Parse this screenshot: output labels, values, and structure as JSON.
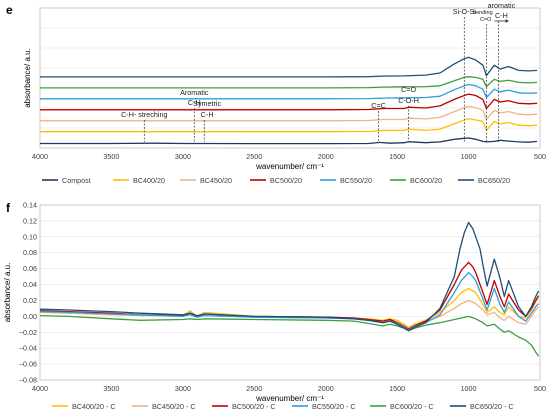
{
  "chart_data": [
    {
      "panel_label": "e",
      "type": "line",
      "xlabel": "wavenumber/ cm⁻¹",
      "ylabel": "absorbance/ a.u.",
      "xlim": [
        4000,
        500
      ],
      "x_reversed": true,
      "x_ticks": [
        4000,
        3500,
        3000,
        2500,
        2000,
        1500,
        1000,
        500
      ],
      "y_ticks_labeled": false,
      "grid": "horizontal",
      "legend_position": "bottom",
      "series": [
        {
          "name": "Compost",
          "color": "#1f3864",
          "offset": 0.0,
          "x": [
            4000,
            3500,
            3200,
            3000,
            2900,
            2500,
            2000,
            1700,
            1620,
            1550,
            1450,
            1420,
            1300,
            1200,
            1100,
            1030,
            1000,
            950,
            900,
            875,
            820,
            780,
            720,
            650,
            580,
            520
          ],
          "y": [
            0.02,
            0.02,
            0.03,
            0.02,
            0.02,
            0.015,
            0.015,
            0.02,
            0.06,
            0.03,
            0.05,
            0.09,
            0.05,
            0.08,
            0.18,
            0.22,
            0.23,
            0.18,
            0.1,
            0.08,
            0.1,
            0.14,
            0.11,
            0.08,
            0.07,
            0.1
          ]
        },
        {
          "name": "BC400/20",
          "color": "#ffc000",
          "offset": 0.6,
          "x": [
            4000,
            3500,
            3000,
            2500,
            2000,
            1700,
            1600,
            1450,
            1420,
            1300,
            1200,
            1100,
            1030,
            1000,
            950,
            900,
            875,
            820,
            780,
            720,
            650,
            580,
            520
          ],
          "y": [
            0.05,
            0.05,
            0.05,
            0.05,
            0.05,
            0.06,
            0.1,
            0.1,
            0.15,
            0.1,
            0.15,
            0.35,
            0.5,
            0.55,
            0.5,
            0.45,
            0.1,
            0.45,
            0.35,
            0.4,
            0.3,
            0.28,
            0.3
          ]
        },
        {
          "name": "BC450/20",
          "color": "#f4b183",
          "offset": 1.2,
          "x": [
            4000,
            3500,
            3000,
            2500,
            2000,
            1700,
            1600,
            1450,
            1420,
            1300,
            1200,
            1100,
            1030,
            1000,
            950,
            900,
            875,
            820,
            780,
            720,
            650,
            580,
            520
          ],
          "y": [
            0.05,
            0.05,
            0.05,
            0.05,
            0.05,
            0.06,
            0.1,
            0.1,
            0.15,
            0.12,
            0.18,
            0.4,
            0.55,
            0.6,
            0.55,
            0.45,
            0.1,
            0.45,
            0.35,
            0.4,
            0.3,
            0.28,
            0.3
          ]
        },
        {
          "name": "BC500/20",
          "color": "#c00000",
          "offset": 1.8,
          "x": [
            4000,
            3500,
            3000,
            2500,
            2000,
            1700,
            1600,
            1450,
            1420,
            1300,
            1200,
            1100,
            1030,
            1000,
            950,
            900,
            875,
            820,
            780,
            720,
            650,
            580,
            520
          ],
          "y": [
            0.05,
            0.05,
            0.05,
            0.05,
            0.05,
            0.06,
            0.1,
            0.1,
            0.15,
            0.12,
            0.2,
            0.45,
            0.6,
            0.65,
            0.6,
            0.45,
            0.1,
            0.45,
            0.35,
            0.4,
            0.3,
            0.28,
            0.3
          ]
        },
        {
          "name": "BC550/20",
          "color": "#2e9fd8",
          "offset": 2.4,
          "x": [
            4000,
            3500,
            3000,
            2500,
            2000,
            1700,
            1600,
            1450,
            1300,
            1200,
            1100,
            1030,
            1000,
            950,
            900,
            875,
            820,
            780,
            720,
            650,
            580,
            520
          ],
          "y": [
            0.05,
            0.05,
            0.05,
            0.05,
            0.05,
            0.06,
            0.08,
            0.09,
            0.1,
            0.15,
            0.4,
            0.55,
            0.6,
            0.55,
            0.42,
            0.1,
            0.42,
            0.32,
            0.38,
            0.28,
            0.26,
            0.28
          ]
        },
        {
          "name": "BC600/20",
          "color": "#3ca03c",
          "offset": 3.0,
          "x": [
            4000,
            3500,
            3000,
            2500,
            2000,
            1700,
            1600,
            1450,
            1300,
            1200,
            1100,
            1030,
            1000,
            950,
            900,
            875,
            820,
            780,
            720,
            650,
            580,
            520
          ],
          "y": [
            0.05,
            0.05,
            0.05,
            0.05,
            0.05,
            0.06,
            0.08,
            0.09,
            0.1,
            0.13,
            0.32,
            0.45,
            0.48,
            0.45,
            0.38,
            0.1,
            0.38,
            0.3,
            0.34,
            0.26,
            0.24,
            0.26
          ]
        },
        {
          "name": "BC650/20",
          "color": "#1f4e79",
          "offset": 3.6,
          "x": [
            4000,
            3500,
            3000,
            2500,
            2000,
            1700,
            1600,
            1450,
            1300,
            1200,
            1100,
            1030,
            1000,
            950,
            900,
            875,
            820,
            780,
            720,
            650,
            580,
            520
          ],
          "y": [
            0.05,
            0.05,
            0.05,
            0.05,
            0.05,
            0.06,
            0.08,
            0.09,
            0.12,
            0.2,
            0.55,
            0.75,
            0.8,
            0.7,
            0.5,
            0.1,
            0.5,
            0.35,
            0.45,
            0.3,
            0.28,
            0.3
          ]
        }
      ],
      "annotations": [
        {
          "text": "C-H- streching",
          "x": 3270,
          "line_x": 3270
        },
        {
          "text": "Aromatic",
          "x": 2920
        },
        {
          "text": "C-H",
          "x": 2920,
          "line_x": 2920
        },
        {
          "text": "Symetric",
          "x": 2830
        },
        {
          "text": "C-H",
          "x": 2830,
          "line_x": 2850
        },
        {
          "text": "C=C",
          "x": 1630,
          "line_x": 1630
        },
        {
          "text": "C=O",
          "x": 1420
        },
        {
          "text": "C-O-H",
          "x": 1420,
          "line_x": 1420
        },
        {
          "text": "Si-O-Si",
          "x": 1030,
          "line_x": 1030
        },
        {
          "text": "bending",
          "x": 900
        },
        {
          "text": "C=O",
          "x": 880,
          "line_x": 875
        },
        {
          "text": "aromatic",
          "x": 770
        },
        {
          "text": "C-H",
          "x": 770,
          "line_x": 790
        }
      ]
    },
    {
      "panel_label": "f",
      "type": "line",
      "xlabel": "wavenumber/ cm⁻¹",
      "ylabel": "absorbance/ a.u.",
      "xlim": [
        4000,
        500
      ],
      "x_reversed": true,
      "x_ticks": [
        4000,
        3500,
        3000,
        2500,
        2000,
        1500,
        1000,
        500
      ],
      "ylim": [
        -0.08,
        0.14
      ],
      "y_ticks": [
        -0.08,
        -0.06,
        -0.04,
        -0.02,
        0.0,
        0.02,
        0.04,
        0.06,
        0.08,
        0.1,
        0.12,
        0.14
      ],
      "y_tick_labels": [
        "−0.08",
        "−0.06",
        "−0.04",
        "−0.02",
        "0.00",
        "0.02",
        "0.04",
        "0.06",
        "0.08",
        "0.10",
        "0.12",
        "0.14"
      ],
      "grid": "horizontal",
      "legend_position": "bottom",
      "series": [
        {
          "name": "BC400/20 - C",
          "color": "#ffc000",
          "x": [
            4000,
            3800,
            3500,
            3300,
            3000,
            2950,
            2900,
            2850,
            2500,
            2000,
            1800,
            1700,
            1600,
            1550,
            1500,
            1450,
            1420,
            1380,
            1300,
            1200,
            1100,
            1050,
            1000,
            950,
            900,
            870,
            820,
            780,
            750,
            720,
            650,
            600,
            560,
            530,
            510
          ],
          "y": [
            0.006,
            0.005,
            0.003,
            0.002,
            0.001,
            0.007,
            0.0,
            0.005,
            0.0,
            -0.001,
            -0.002,
            -0.003,
            -0.005,
            -0.003,
            -0.005,
            -0.01,
            -0.014,
            -0.01,
            -0.005,
            0.005,
            0.02,
            0.03,
            0.035,
            0.03,
            0.015,
            0.005,
            0.012,
            0.005,
            0.002,
            0.012,
            0.0,
            -0.002,
            0.008,
            0.018,
            0.024
          ]
        },
        {
          "name": "BC450/20 - C",
          "color": "#f4b183",
          "x": [
            4000,
            3800,
            3500,
            3300,
            3000,
            2950,
            2900,
            2850,
            2500,
            2000,
            1800,
            1700,
            1600,
            1550,
            1500,
            1450,
            1420,
            1380,
            1300,
            1200,
            1100,
            1050,
            1000,
            950,
            900,
            870,
            820,
            780,
            750,
            720,
            650,
            600,
            560,
            530,
            510
          ],
          "y": [
            0.005,
            0.004,
            0.002,
            0.001,
            0.0,
            0.006,
            -0.001,
            0.004,
            -0.001,
            -0.002,
            -0.003,
            -0.004,
            -0.006,
            -0.004,
            -0.007,
            -0.012,
            -0.016,
            -0.012,
            -0.007,
            0.0,
            0.01,
            0.016,
            0.02,
            0.016,
            0.008,
            0.002,
            0.005,
            -0.002,
            -0.005,
            0.0,
            -0.008,
            -0.01,
            0.0,
            0.008,
            0.012
          ]
        },
        {
          "name": "BC500/20 - C",
          "color": "#c00000",
          "x": [
            4000,
            3800,
            3500,
            3300,
            3000,
            2950,
            2900,
            2850,
            2500,
            2000,
            1800,
            1700,
            1600,
            1550,
            1500,
            1450,
            1420,
            1380,
            1300,
            1200,
            1100,
            1050,
            1000,
            970,
            950,
            900,
            870,
            820,
            780,
            750,
            720,
            650,
            600,
            560,
            530,
            510
          ],
          "y": [
            0.007,
            0.006,
            0.004,
            0.002,
            0.001,
            0.004,
            0.0,
            0.003,
            0.0,
            -0.001,
            -0.002,
            -0.004,
            -0.006,
            -0.004,
            -0.008,
            -0.013,
            -0.016,
            -0.012,
            -0.006,
            0.008,
            0.04,
            0.058,
            0.068,
            0.062,
            0.055,
            0.03,
            0.015,
            0.045,
            0.025,
            0.012,
            0.028,
            0.008,
            0.0,
            0.01,
            0.02,
            0.026
          ]
        },
        {
          "name": "BC550/20 - C",
          "color": "#2e9fd8",
          "x": [
            4000,
            3800,
            3500,
            3300,
            3000,
            2950,
            2900,
            2850,
            2500,
            2000,
            1800,
            1700,
            1600,
            1550,
            1500,
            1450,
            1420,
            1380,
            1300,
            1200,
            1100,
            1050,
            1000,
            970,
            950,
            900,
            870,
            820,
            780,
            750,
            720,
            650,
            600,
            560,
            530,
            510
          ],
          "y": [
            0.006,
            0.005,
            0.003,
            0.002,
            0.0,
            0.002,
            -0.001,
            0.001,
            -0.001,
            -0.002,
            -0.003,
            -0.005,
            -0.008,
            -0.006,
            -0.009,
            -0.014,
            -0.017,
            -0.013,
            -0.008,
            0.002,
            0.03,
            0.045,
            0.055,
            0.05,
            0.045,
            0.022,
            0.008,
            0.035,
            0.015,
            0.005,
            0.018,
            0.0,
            -0.006,
            0.004,
            0.012,
            0.016
          ]
        },
        {
          "name": "BC600/20 - C",
          "color": "#3ca03c",
          "x": [
            4000,
            3800,
            3500,
            3300,
            3000,
            2950,
            2900,
            2850,
            2500,
            2000,
            1800,
            1700,
            1600,
            1550,
            1500,
            1450,
            1420,
            1380,
            1300,
            1200,
            1100,
            1050,
            1000,
            950,
            900,
            870,
            820,
            780,
            750,
            720,
            650,
            600,
            560,
            530,
            510
          ],
          "y": [
            0.001,
            0.0,
            -0.003,
            -0.005,
            -0.004,
            -0.003,
            -0.004,
            -0.003,
            -0.004,
            -0.005,
            -0.006,
            -0.009,
            -0.012,
            -0.01,
            -0.012,
            -0.015,
            -0.018,
            -0.015,
            -0.011,
            -0.008,
            -0.004,
            -0.002,
            0.0,
            -0.003,
            -0.008,
            -0.012,
            -0.01,
            -0.016,
            -0.02,
            -0.018,
            -0.026,
            -0.03,
            -0.036,
            -0.045,
            -0.05
          ]
        },
        {
          "name": "BC650/20 - C",
          "color": "#1f4e79",
          "x": [
            4000,
            3800,
            3500,
            3300,
            3000,
            2950,
            2900,
            2850,
            2500,
            2000,
            1800,
            1700,
            1600,
            1550,
            1500,
            1450,
            1420,
            1380,
            1300,
            1200,
            1100,
            1060,
            1030,
            1000,
            970,
            950,
            920,
            900,
            870,
            820,
            780,
            750,
            720,
            650,
            600,
            560,
            530,
            510
          ],
          "y": [
            0.009,
            0.008,
            0.006,
            0.004,
            0.002,
            0.004,
            0.001,
            0.003,
            0.0,
            -0.001,
            -0.003,
            -0.005,
            -0.008,
            -0.006,
            -0.01,
            -0.015,
            -0.018,
            -0.014,
            -0.008,
            0.01,
            0.05,
            0.085,
            0.105,
            0.118,
            0.11,
            0.1,
            0.085,
            0.065,
            0.038,
            0.072,
            0.048,
            0.025,
            0.045,
            0.012,
            0.0,
            0.012,
            0.025,
            0.032
          ]
        }
      ]
    }
  ]
}
